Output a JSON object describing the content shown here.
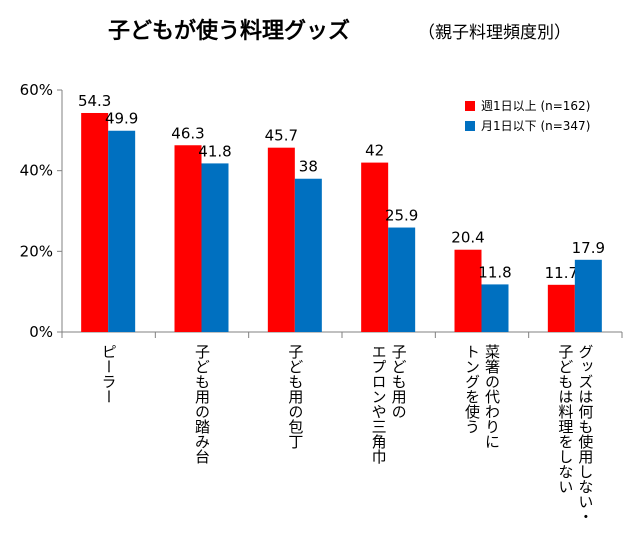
{
  "chart_data": {
    "type": "bar",
    "title": "子どもが使う料理グッズ",
    "subtitle": "（親子料理頻度別）",
    "categories": [
      [
        "ピーラー"
      ],
      [
        "子ども用の踏み台"
      ],
      [
        "子ども用の包丁"
      ],
      [
        "子ども用の",
        "エプロンや三角巾"
      ],
      [
        "菜箸の代わりに",
        "トングを使う"
      ],
      [
        "グッズは何も使用しない・",
        "子どもは料理をしない"
      ]
    ],
    "series": [
      {
        "name": "週1日以上 (n=162)",
        "color": "#ff0000",
        "values": [
          54.3,
          46.3,
          45.7,
          42.0,
          20.4,
          11.7
        ]
      },
      {
        "name": "月1日以下 (n=347)",
        "color": "#0070c0",
        "values": [
          49.9,
          41.8,
          38.0,
          25.9,
          11.8,
          17.9
        ]
      }
    ],
    "ylim": [
      0,
      60
    ],
    "yticks": [
      "0%",
      "20%",
      "40%",
      "60%"
    ],
    "legend_position": "top-right",
    "grid": false
  }
}
